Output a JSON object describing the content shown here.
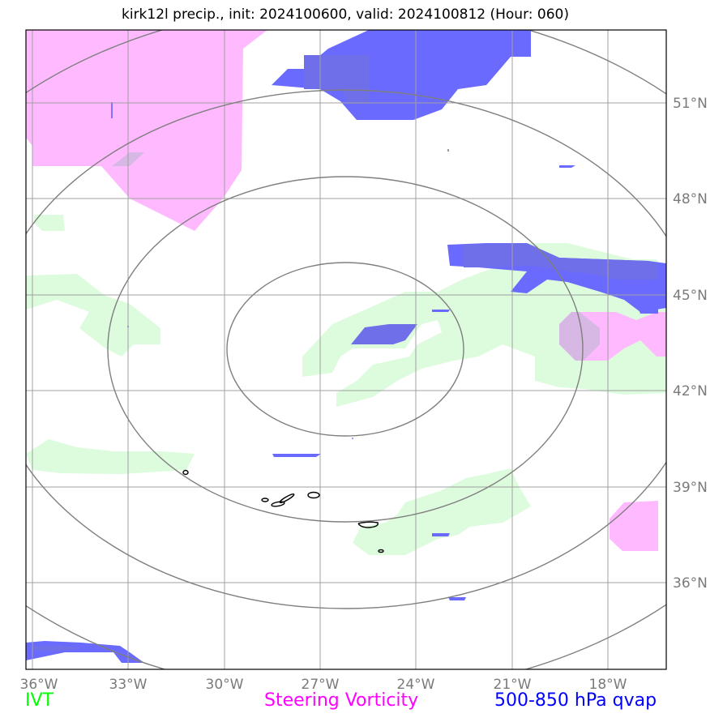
{
  "title": "kirk12l precip., init: 2024100600, valid: 2024100812 (Hour: 060)",
  "map": {
    "lon_labels": [
      "36°W",
      "33°W",
      "30°W",
      "27°W",
      "24°W",
      "21°W",
      "18°W"
    ],
    "lat_labels": [
      "51°N",
      "48°N",
      "45°N",
      "42°N",
      "39°N",
      "36°N"
    ],
    "gridline_color": "#a0a0a0",
    "range_ring_color": "#7f7f7f",
    "fields": {
      "ivt_color": "#ddfbdd",
      "steering_vorticity_color": "#ffbaff",
      "qvap_color": "#6a6aff"
    }
  },
  "legend": {
    "ivt": {
      "label": "IVT",
      "color": "#00ff00"
    },
    "vorticity": {
      "label": "Steering Vorticity",
      "color": "#ff00ff"
    },
    "qvap": {
      "label": "500-850 hPa qvap",
      "color": "#0000ff"
    }
  }
}
